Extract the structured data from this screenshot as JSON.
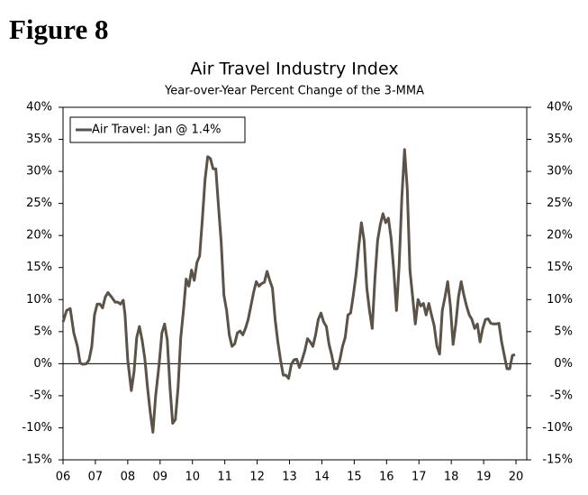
{
  "chart_data": {
    "type": "line",
    "figure_label": "Figure 8",
    "title": "Air Travel Industry Index",
    "subtitle": "Year-over-Year Percent Change of the 3-MMA",
    "x": [
      2006,
      2006.111,
      2006.222,
      2006.333,
      2006.444,
      2006.528,
      2006.611,
      2006.722,
      2006.806,
      2006.889,
      2006.972,
      2007.056,
      2007.139,
      2007.222,
      2007.306,
      2007.389,
      2007.5,
      2007.611,
      2007.694,
      2007.778,
      2007.861,
      2007.917,
      2008,
      2008.111,
      2008.194,
      2008.278,
      2008.361,
      2008.444,
      2008.528,
      2008.611,
      2008.694,
      2008.778,
      2008.861,
      2008.972,
      2009.056,
      2009.139,
      2009.222,
      2009.306,
      2009.389,
      2009.472,
      2009.556,
      2009.639,
      2009.722,
      2009.806,
      2009.889,
      2009.972,
      2010.056,
      2010.139,
      2010.222,
      2010.306,
      2010.389,
      2010.472,
      2010.556,
      2010.639,
      2010.722,
      2010.806,
      2010.889,
      2010.972,
      2011.056,
      2011.139,
      2011.222,
      2011.306,
      2011.389,
      2011.472,
      2011.556,
      2011.639,
      2011.722,
      2011.806,
      2011.889,
      2011.972,
      2012.056,
      2012.139,
      2012.222,
      2012.306,
      2012.389,
      2012.472,
      2012.556,
      2012.639,
      2012.722,
      2012.806,
      2012.889,
      2012.972,
      2013.056,
      2013.139,
      2013.222,
      2013.306,
      2013.389,
      2013.472,
      2013.556,
      2013.639,
      2013.722,
      2013.806,
      2013.889,
      2013.972,
      2014.056,
      2014.139,
      2014.222,
      2014.306,
      2014.389,
      2014.472,
      2014.556,
      2014.639,
      2014.722,
      2014.806,
      2014.889,
      2014.972,
      2015.056,
      2015.139,
      2015.222,
      2015.306,
      2015.389,
      2015.472,
      2015.556,
      2015.639,
      2015.722,
      2015.806,
      2015.889,
      2015.972,
      2016.056,
      2016.139,
      2016.222,
      2016.306,
      2016.389,
      2016.472,
      2016.556,
      2016.639,
      2016.722,
      2016.806,
      2016.889,
      2016.972,
      2017.056,
      2017.139,
      2017.222,
      2017.306,
      2017.389,
      2017.472,
      2017.556,
      2017.639,
      2017.722,
      2017.806,
      2017.889,
      2017.972,
      2018.056,
      2018.139,
      2018.222,
      2018.306,
      2018.389,
      2018.472,
      2018.556,
      2018.639,
      2018.722,
      2018.806,
      2018.889,
      2018.972,
      2019.056,
      2019.139,
      2019.222,
      2019.306,
      2019.389,
      2019.472,
      2019.556,
      2019.639,
      2019.722,
      2019.806,
      2019.889,
      2019.972
    ],
    "series": [
      {
        "name": "Air Travel: Jan @ 1.4%",
        "color": "#5b5248",
        "values": [
          6.5,
          8.3,
          8.6,
          4.8,
          2.7,
          0.1,
          -0.1,
          0,
          0.6,
          2.7,
          7.6,
          9.3,
          9.3,
          8.7,
          10.4,
          11.1,
          10.4,
          9.6,
          9.6,
          9.3,
          9.9,
          7.6,
          0.6,
          -4.2,
          -1.3,
          4.1,
          5.8,
          3.7,
          0.8,
          -3.7,
          -7.5,
          -10.7,
          -5.1,
          0,
          4.8,
          6.2,
          3.7,
          -3.7,
          -9.3,
          -8.7,
          -3.7,
          4.1,
          8.3,
          13.2,
          12.1,
          14.6,
          13,
          15.8,
          16.8,
          22.5,
          28.7,
          32.3,
          32,
          30.4,
          30.4,
          24.5,
          18.9,
          10.7,
          8.3,
          4.5,
          2.7,
          3.1,
          4.8,
          5.1,
          4.5,
          5.5,
          6.9,
          9,
          11.1,
          12.8,
          12.1,
          12.5,
          12.7,
          14.4,
          13,
          11.8,
          6.9,
          3.4,
          0.6,
          -1.8,
          -1.8,
          -2.3,
          -0.1,
          0.6,
          0.7,
          -0.6,
          0.6,
          2,
          3.9,
          3.4,
          2.7,
          4.5,
          6.9,
          7.9,
          6.5,
          5.8,
          3,
          1.3,
          -0.8,
          -0.8,
          0.6,
          2.7,
          4.1,
          7.6,
          7.9,
          10.7,
          13.9,
          18.2,
          22,
          19.2,
          11.8,
          8.3,
          5.5,
          13.2,
          19.2,
          21.7,
          23.4,
          22,
          22.7,
          19.6,
          14.6,
          8.3,
          15.4,
          25.9,
          33.4,
          27.3,
          14.6,
          10.4,
          6.2,
          10,
          9,
          9.4,
          7.6,
          9.4,
          7.6,
          5.9,
          2.7,
          1.5,
          8.3,
          10.4,
          12.8,
          9,
          3,
          6.2,
          10.4,
          12.8,
          10.7,
          9,
          7.6,
          6.9,
          5.5,
          6.2,
          3.4,
          5.5,
          6.9,
          7,
          6.3,
          6.2,
          6.2,
          6.3,
          3.4,
          1.3,
          -0.8,
          -0.8,
          1.3,
          1.4
        ]
      }
    ],
    "xlim": [
      2006,
      2020.333
    ],
    "xticks": [
      {
        "value": 2006,
        "label": "06"
      },
      {
        "value": 2007,
        "label": "07"
      },
      {
        "value": 2008,
        "label": "08"
      },
      {
        "value": 2009,
        "label": "09"
      },
      {
        "value": 2010,
        "label": "10"
      },
      {
        "value": 2011,
        "label": "11"
      },
      {
        "value": 2012,
        "label": "12"
      },
      {
        "value": 2013,
        "label": "13"
      },
      {
        "value": 2014,
        "label": "14"
      },
      {
        "value": 2015,
        "label": "15"
      },
      {
        "value": 2016,
        "label": "16"
      },
      {
        "value": 2017,
        "label": "17"
      },
      {
        "value": 2018,
        "label": "18"
      },
      {
        "value": 2019,
        "label": "19"
      },
      {
        "value": 2020,
        "label": "20"
      }
    ],
    "ylim": [
      -15,
      40
    ],
    "yticks": [
      {
        "value": -15,
        "label": "-15%"
      },
      {
        "value": -10,
        "label": "-10%"
      },
      {
        "value": -5,
        "label": "-5%"
      },
      {
        "value": 0,
        "label": "0%"
      },
      {
        "value": 5,
        "label": "5%"
      },
      {
        "value": 10,
        "label": "10%"
      },
      {
        "value": 15,
        "label": "15%"
      },
      {
        "value": 20,
        "label": "20%"
      },
      {
        "value": 25,
        "label": "25%"
      },
      {
        "value": 30,
        "label": "30%"
      },
      {
        "value": 35,
        "label": "35%"
      },
      {
        "value": 40,
        "label": "40%"
      }
    ],
    "legend": "upper left"
  }
}
